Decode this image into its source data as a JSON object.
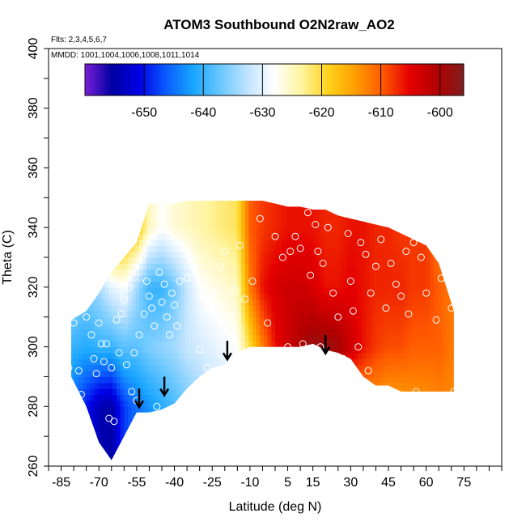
{
  "chart_data": {
    "type": "heatmap",
    "title": "ATOM3 Southbound O2N2raw_AO2",
    "notes": [
      "Flts: 2,3,4,5,6,7",
      "MMDD: 1001,1004,1006,1008,1011,1014"
    ],
    "xlabel": "Latitude (deg N)",
    "ylabel": "Theta (C)",
    "x_ticks": [
      -85,
      -70,
      -55,
      -40,
      -25,
      -10,
      5,
      15,
      30,
      45,
      60,
      75
    ],
    "y_ticks": [
      260,
      280,
      300,
      320,
      340,
      360,
      380,
      400
    ],
    "xlim": [
      -90,
      90
    ],
    "ylim": [
      260,
      400
    ],
    "colorbar": {
      "ticks": [
        -650,
        -640,
        -630,
        -620,
        -610,
        -600
      ],
      "range": [
        -660,
        -596
      ],
      "colors": [
        "#7a1fd8",
        "#0000a0",
        "#0000e6",
        "#0a5cff",
        "#19a6ff",
        "#69c7ff",
        "#bfe3ff",
        "#ffffff",
        "#fff4a0",
        "#ffd21a",
        "#ff9d00",
        "#ff5a00",
        "#e40000",
        "#b30000",
        "#7f1d1d"
      ]
    },
    "field": {
      "lat": [
        -81,
        -75,
        -70,
        -65,
        -60,
        -55,
        -50,
        -45,
        -40,
        -35,
        -30,
        -25,
        -20,
        -15,
        -10,
        -5,
        0,
        5,
        10,
        15,
        20,
        25,
        30,
        35,
        40,
        45,
        50,
        55,
        60,
        65,
        71
      ],
      "bottom": [
        290,
        280,
        268,
        262,
        270,
        278,
        278,
        279,
        281,
        286,
        290,
        293,
        294,
        298,
        300,
        300,
        300,
        300,
        300,
        301,
        299,
        298,
        296,
        290,
        287,
        287,
        285,
        285,
        285,
        285,
        285
      ],
      "top": [
        309,
        312,
        318,
        325,
        330,
        335,
        348,
        348,
        348,
        349,
        349,
        349,
        349,
        349,
        349,
        349,
        348,
        347,
        347,
        346,
        346,
        344,
        343,
        342,
        341,
        340,
        338,
        336,
        334,
        328,
        312
      ],
      "theta_levels": [
        280,
        300,
        320,
        340
      ],
      "values": [
        [
          -645,
          -640,
          -634,
          -628
        ],
        [
          -650,
          -641,
          -636,
          -630
        ],
        [
          -654,
          -640,
          -634,
          -625
        ],
        [
          -655,
          -640,
          -630,
          -612
        ],
        [
          -648,
          -638,
          -628,
          -614
        ],
        [
          -645,
          -638,
          -634,
          -616
        ],
        [
          -643,
          -636,
          -640,
          -625
        ],
        [
          -641,
          -635,
          -640,
          -628
        ],
        [
          -639,
          -634,
          -637,
          -626
        ],
        [
          -637,
          -632,
          -632,
          -625
        ],
        [
          -635,
          -631,
          -628,
          -624
        ],
        [
          -633,
          -630,
          -627,
          -623
        ],
        [
          -632,
          -629,
          -626,
          -622
        ],
        [
          -630,
          -628,
          -625,
          -621
        ],
        [
          -628,
          -620,
          -612,
          -610
        ],
        [
          -626,
          -612,
          -606,
          -608
        ],
        [
          -624,
          -606,
          -604,
          -607
        ],
        [
          -622,
          -603,
          -603,
          -606
        ],
        [
          -620,
          -600,
          -603,
          -606
        ],
        [
          -618,
          -598,
          -604,
          -606
        ],
        [
          -616,
          -598,
          -606,
          -607
        ],
        [
          -615,
          -599,
          -606,
          -607
        ],
        [
          -614,
          -603,
          -605,
          -606
        ],
        [
          -614,
          -606,
          -606,
          -606
        ],
        [
          -614,
          -608,
          -607,
          -607
        ],
        [
          -615,
          -609,
          -607,
          -607
        ],
        [
          -615,
          -609,
          -607,
          -608
        ],
        [
          -614,
          -610,
          -608,
          -608
        ],
        [
          -614,
          -610,
          -608,
          -608
        ],
        [
          -613,
          -610,
          -610,
          -612
        ],
        [
          -613,
          -612,
          -612,
          -614
        ]
      ]
    },
    "samples": [
      [
        -82,
        293
      ],
      [
        -80,
        308
      ],
      [
        -78,
        292
      ],
      [
        -77,
        284
      ],
      [
        -75,
        310
      ],
      [
        -73,
        304
      ],
      [
        -72,
        296
      ],
      [
        -71,
        291
      ],
      [
        -70,
        308
      ],
      [
        -69,
        301
      ],
      [
        -68,
        295
      ],
      [
        -67,
        301
      ],
      [
        -66,
        276
      ],
      [
        -65,
        293
      ],
      [
        -64,
        275
      ],
      [
        -63,
        309
      ],
      [
        -62,
        298
      ],
      [
        -61,
        311
      ],
      [
        -60,
        316
      ],
      [
        -59,
        294
      ],
      [
        -58,
        320
      ],
      [
        -57,
        285
      ],
      [
        -56,
        298
      ],
      [
        -55,
        282
      ],
      [
        -54,
        304
      ],
      [
        -53,
        330
      ],
      [
        -52,
        311
      ],
      [
        -51,
        322
      ],
      [
        -50,
        317
      ],
      [
        -49,
        313
      ],
      [
        -48,
        307
      ],
      [
        -47,
        280
      ],
      [
        -46,
        325
      ],
      [
        -45,
        315
      ],
      [
        -44,
        321
      ],
      [
        -43,
        310
      ],
      [
        -42,
        304
      ],
      [
        -41,
        318
      ],
      [
        -40,
        314
      ],
      [
        -39,
        307
      ],
      [
        -38,
        322
      ],
      [
        -35,
        323
      ],
      [
        -32,
        326
      ],
      [
        -30,
        299
      ],
      [
        -28,
        316
      ],
      [
        -27,
        293
      ],
      [
        -26,
        313
      ],
      [
        -24,
        318
      ],
      [
        -22,
        327
      ],
      [
        -20,
        332
      ],
      [
        -18,
        310
      ],
      [
        -16,
        319
      ],
      [
        -14,
        334
      ],
      [
        -12,
        316
      ],
      [
        -9,
        322
      ],
      [
        -6,
        343
      ],
      [
        -3,
        308
      ],
      [
        0,
        337
      ],
      [
        3,
        330
      ],
      [
        5,
        300
      ],
      [
        6,
        332
      ],
      [
        8,
        337
      ],
      [
        10,
        333
      ],
      [
        11,
        301
      ],
      [
        13,
        345
      ],
      [
        14,
        324
      ],
      [
        16,
        341
      ],
      [
        17,
        332
      ],
      [
        18,
        300
      ],
      [
        19,
        328
      ],
      [
        21,
        340
      ],
      [
        23,
        318
      ],
      [
        25,
        310
      ],
      [
        27,
        296
      ],
      [
        29,
        338
      ],
      [
        30,
        322
      ],
      [
        31,
        312
      ],
      [
        33,
        300
      ],
      [
        34,
        335
      ],
      [
        36,
        331
      ],
      [
        37,
        292
      ],
      [
        38,
        318
      ],
      [
        40,
        327
      ],
      [
        42,
        336
      ],
      [
        44,
        313
      ],
      [
        46,
        328
      ],
      [
        48,
        321
      ],
      [
        50,
        317
      ],
      [
        52,
        332
      ],
      [
        53,
        311
      ],
      [
        55,
        335
      ],
      [
        56,
        285
      ],
      [
        58,
        330
      ],
      [
        60,
        318
      ],
      [
        62,
        334
      ],
      [
        64,
        309
      ],
      [
        66,
        323
      ],
      [
        68,
        331
      ],
      [
        70,
        313
      ],
      [
        71,
        285
      ]
    ],
    "arrows": [
      {
        "lat": -54,
        "theta": 286
      },
      {
        "lat": -44,
        "theta": 290
      },
      {
        "lat": -19,
        "theta": 302
      },
      {
        "lat": 20,
        "theta": 304
      }
    ],
    "grid": false,
    "legend": "top"
  }
}
